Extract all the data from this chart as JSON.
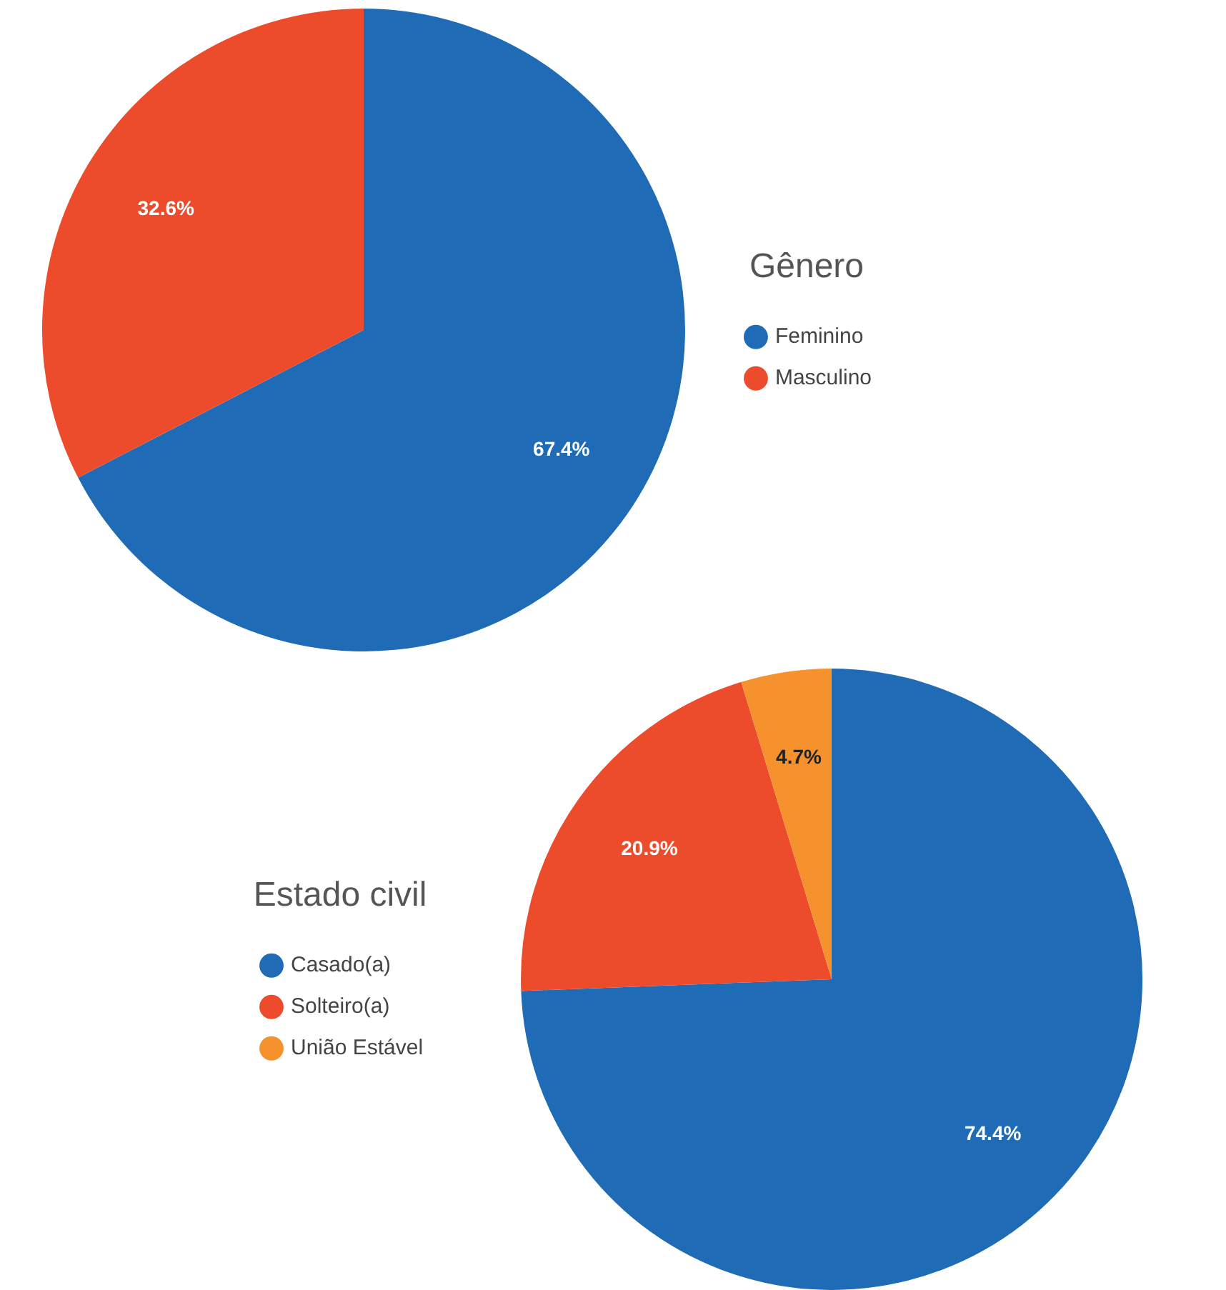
{
  "chart_data": [
    {
      "type": "pie",
      "legend_title": "Gênero",
      "categories": [
        "Feminino",
        "Masculino"
      ],
      "values": [
        67.4,
        32.6
      ],
      "colors": [
        "#1f6bb5",
        "#ec4c2c"
      ],
      "value_labels": [
        "67.4%",
        "32.6%"
      ],
      "legend": "right"
    },
    {
      "type": "pie",
      "legend_title": "Estado civil",
      "categories": [
        "Casado(a)",
        "Solteiro(a)",
        "União Estável"
      ],
      "values": [
        74.4,
        20.9,
        4.7
      ],
      "colors": [
        "#1f6bb5",
        "#ec4c2c",
        "#f5922e"
      ],
      "value_labels": [
        "74.4%",
        "20.9%",
        "4.7%"
      ],
      "legend": "left"
    }
  ]
}
